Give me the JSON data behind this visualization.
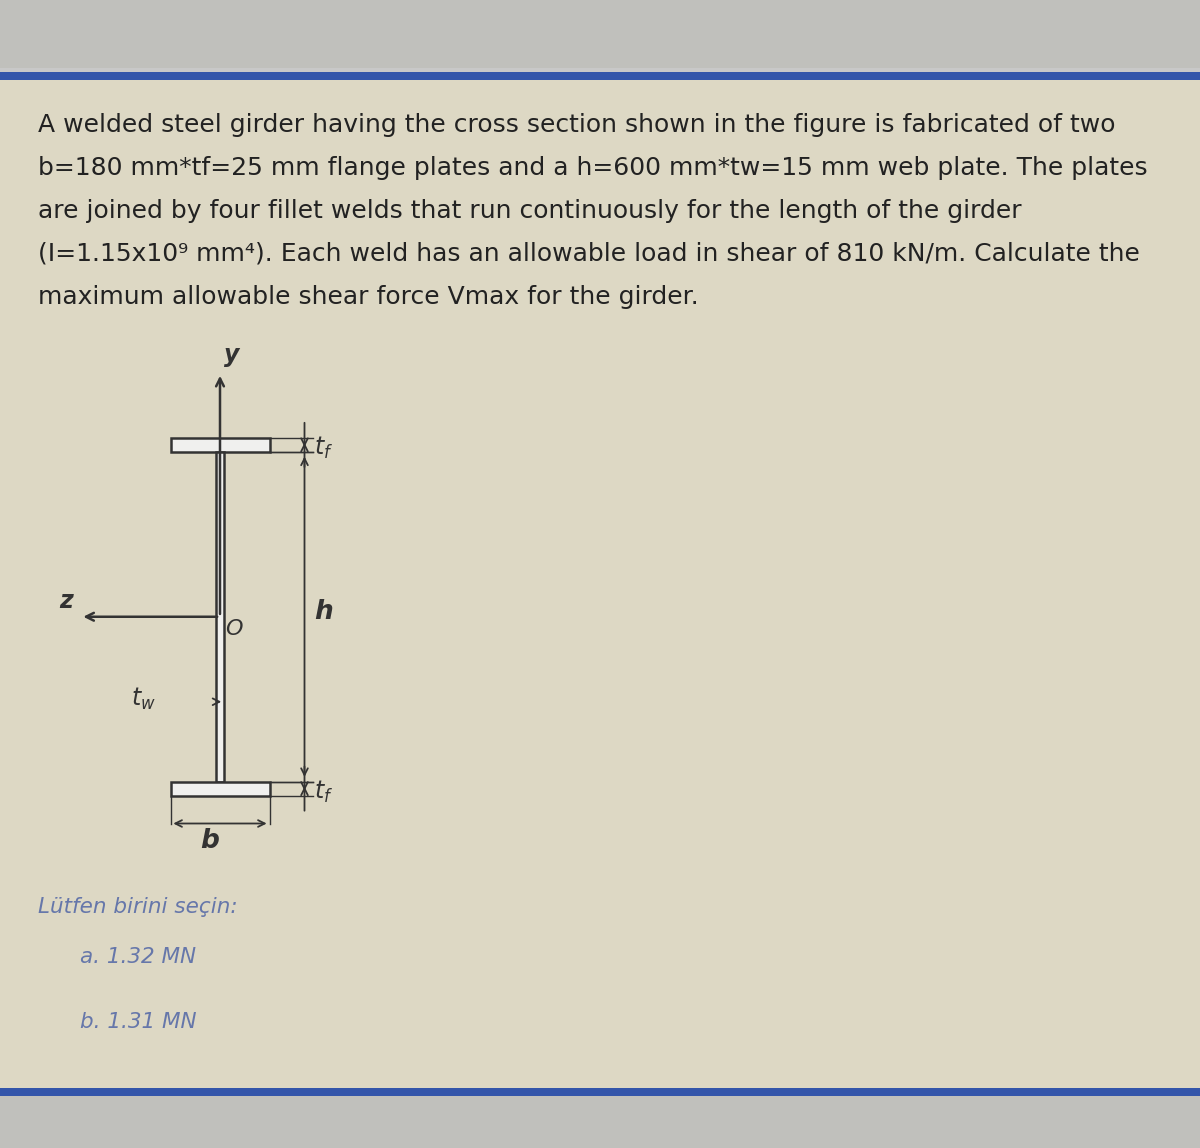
{
  "bg_color_top": "#c8c8c8",
  "bg_color_main": "#ddd8c8",
  "blue_line_color": "#3355aa",
  "text_color": "#222222",
  "label_color": "#6677aa",
  "diagram_color": "#333333",
  "problem_text": [
    "A welded steel girder having the cross section shown in the figure is fabricated of two",
    "b=180 mm*tf=25 mm flange plates and a h=600 mm*tw=15 mm web plate. The plates",
    "are joined by four fillet welds that run continuously for the length of the girder",
    "(I=1.15x10⁹ mm⁴). Each weld has an allowable load in shear of 810 kN/m. Calculate the",
    "maximum allowable shear force Vmax for the girder."
  ],
  "choice_label": "Lütfen birini seçin:",
  "choices": [
    "a. 1.32 MN",
    "b. 1.31 MN"
  ]
}
